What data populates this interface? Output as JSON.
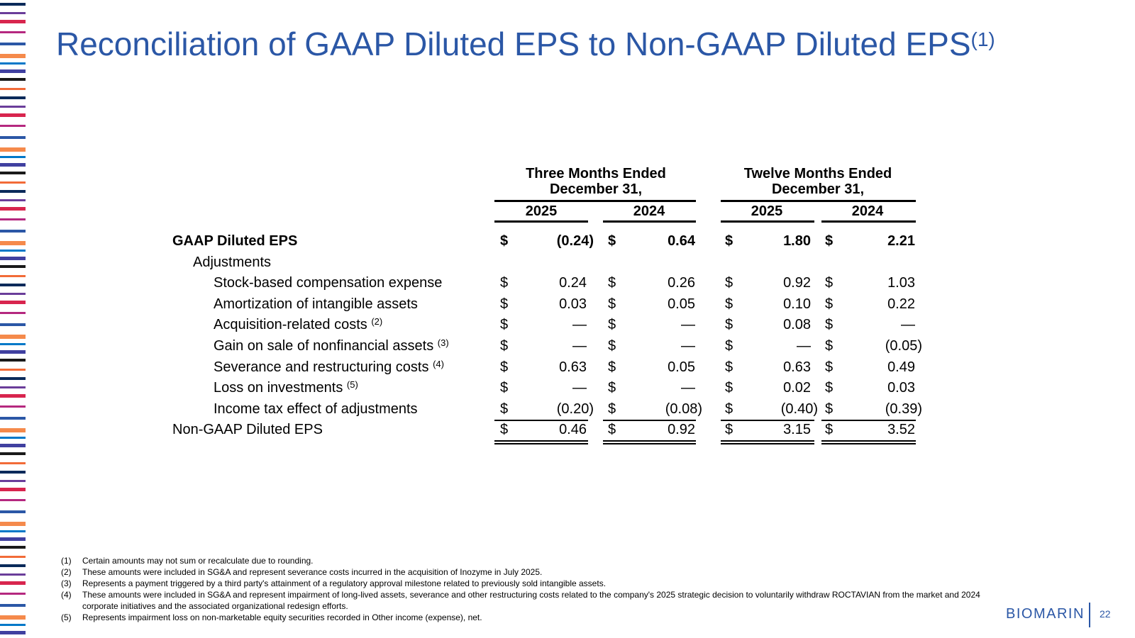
{
  "title": "Reconciliation of GAAP Diluted EPS to Non-GAAP Diluted EPS",
  "title_note": "(1)",
  "headers": {
    "three_months": [
      "Three Months Ended",
      "December 31,"
    ],
    "twelve_months": [
      "Twelve Months Ended",
      "December 31,"
    ],
    "years": [
      "2025",
      "2024",
      "2025",
      "2024"
    ]
  },
  "rows": [
    {
      "label": "GAAP Diluted EPS",
      "note": "",
      "cur": "$",
      "values": [
        "(0.24)",
        "0.64",
        "1.80",
        "2.21"
      ]
    },
    {
      "label": "Adjustments",
      "note": "",
      "cur": "",
      "values": [
        "",
        "",
        "",
        ""
      ]
    },
    {
      "label": "Stock-based compensation expense",
      "note": "",
      "cur": "$",
      "values": [
        "0.24",
        "0.26",
        "0.92",
        "1.03"
      ]
    },
    {
      "label": "Amortization of intangible assets",
      "note": "",
      "cur": "$",
      "values": [
        "0.03",
        "0.05",
        "0.10",
        "0.22"
      ]
    },
    {
      "label": "Acquisition-related costs",
      "note": "(2)",
      "cur": "$",
      "values": [
        "—",
        "—",
        "0.08",
        "—"
      ]
    },
    {
      "label": "Gain on sale of nonfinancial assets",
      "note": "(3)",
      "cur": "$",
      "values": [
        "—",
        "—",
        "—",
        "(0.05)"
      ]
    },
    {
      "label": "Severance and restructuring costs",
      "note": "(4)",
      "cur": "$",
      "values": [
        "0.63",
        "0.05",
        "0.63",
        "0.49"
      ]
    },
    {
      "label": "Loss on investments",
      "note": "(5)",
      "cur": "$",
      "values": [
        "—",
        "—",
        "0.02",
        "0.03"
      ]
    },
    {
      "label": "Income tax effect of adjustments",
      "note": "",
      "cur": "$",
      "values": [
        "(0.20)",
        "(0.08)",
        "(0.40)",
        "(0.39)"
      ]
    },
    {
      "label": "Non-GAAP Diluted EPS",
      "note": "",
      "cur": "$",
      "values": [
        "0.46",
        "0.92",
        "3.15",
        "3.52"
      ]
    }
  ],
  "footnotes": [
    {
      "num": "(1)",
      "text": "Certain amounts may not sum or recalculate due to rounding."
    },
    {
      "num": "(2)",
      "text": "These amounts were included in SG&A and represent severance costs incurred in the acquisition of Inozyme in July 2025."
    },
    {
      "num": "(3)",
      "text": "Represents a payment triggered by a third party's attainment of a regulatory approval milestone related to previously sold intangible assets."
    },
    {
      "num": "(4)",
      "text": "These amounts were included in SG&A and represent impairment of long-lived assets, severance and other restructuring costs related to the company's 2025 strategic decision to voluntarily withdraw ROCTAVIAN from the market and 2024 corporate initiatives and the associated organizational redesign efforts."
    },
    {
      "num": "(5)",
      "text": "Represents impairment loss on non-marketable equity securities recorded in Other income (expense), net."
    }
  ],
  "logo": "BIOMARIN",
  "page_number": "22",
  "colors": {
    "accent": "#2B57A6"
  }
}
